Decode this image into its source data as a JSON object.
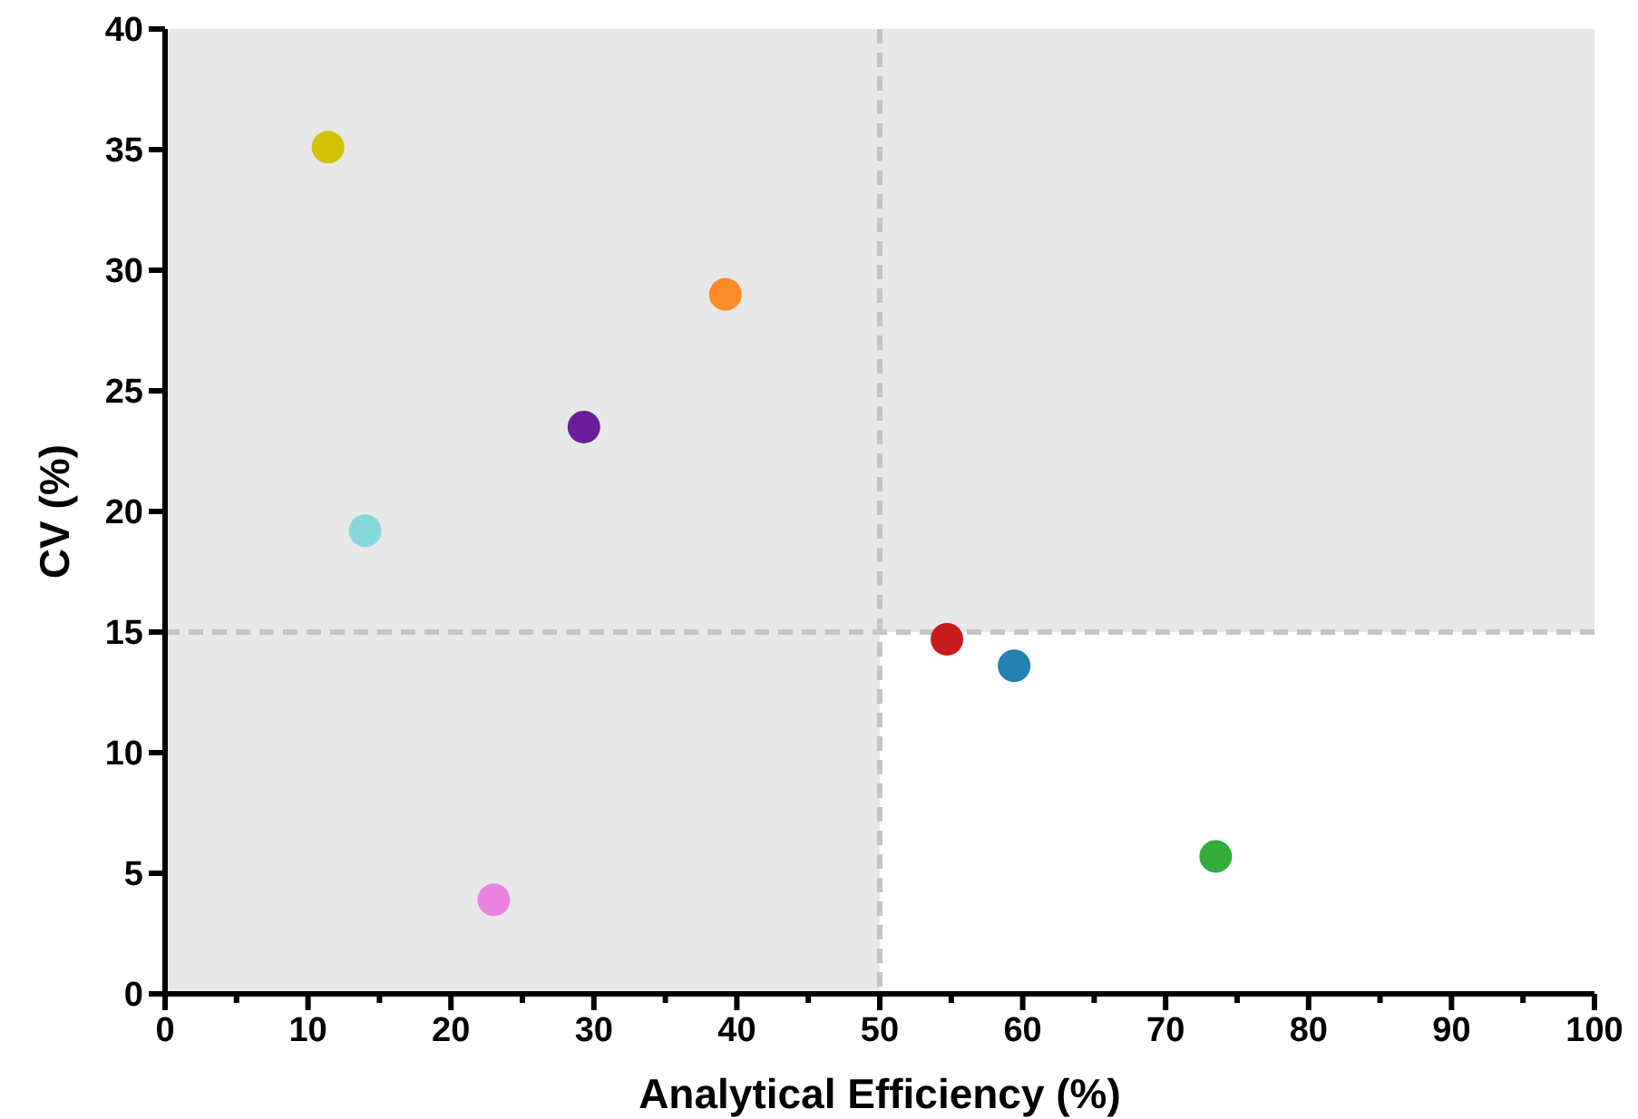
{
  "chart_data": {
    "type": "scatter",
    "xlabel": "Analytical Efficiency (%)",
    "ylabel": "CV (%)",
    "x": [
      11.4,
      39.2,
      29.3,
      14.0,
      23.0,
      54.7,
      59.4,
      73.5
    ],
    "series": [
      {
        "values": [
          35.1,
          29.0,
          23.5,
          19.2,
          3.9,
          14.7,
          13.6,
          5.7
        ],
        "colors": [
          "#d4c10a",
          "#fb8a28",
          "#6a1f9a",
          "#86d8de",
          "#ea82e0",
          "#c91c1c",
          "#2380b0",
          "#32ad3a"
        ]
      }
    ],
    "xlim": [
      0,
      100
    ],
    "ylim": [
      0,
      40
    ],
    "xticks": [
      0,
      {
        "value": 5,
        "label": null
      },
      10,
      {
        "value": 15,
        "label": null
      },
      20,
      {
        "value": 25,
        "label": null
      },
      30,
      {
        "value": 35,
        "label": null
      },
      40,
      {
        "value": 45,
        "label": null
      },
      50,
      {
        "value": 55,
        "label": null
      },
      60,
      {
        "value": 65,
        "label": null
      },
      70,
      {
        "value": 75,
        "label": null
      },
      80,
      {
        "value": 85,
        "label": null
      },
      90,
      {
        "value": 95,
        "label": null
      },
      100
    ],
    "yticks": [
      0,
      5,
      10,
      15,
      20,
      25,
      30,
      35,
      40
    ],
    "bands": [
      {
        "axis": "y",
        "from": 15,
        "to": 40,
        "color": "#e8e8e8"
      },
      {
        "axis": "x",
        "from": 0,
        "to": 50,
        "color": "#e8e8e8"
      }
    ],
    "ref_lines": [
      {
        "axis": "x",
        "value": 50,
        "color": "#c4c4c4",
        "line_style": "dashed"
      },
      {
        "axis": "y",
        "value": 15,
        "color": "#c4c4c4",
        "line_style": "dashed"
      }
    ],
    "marker": "circle",
    "grid": false
  }
}
